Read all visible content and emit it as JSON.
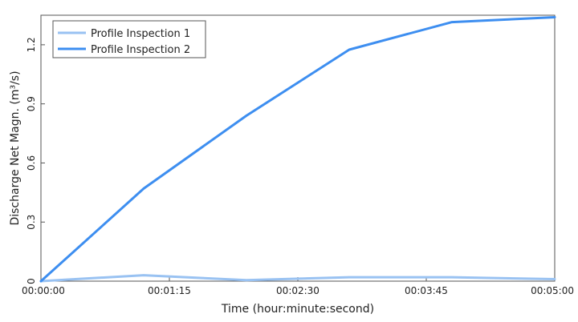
{
  "chart_data": {
    "type": "line",
    "title": "",
    "xlabel": "Time (hour:minute:second)",
    "ylabel": "Discharge Net Magn. (m³/s)",
    "x_ticks": [
      "00:00:00",
      "00:01:15",
      "00:02:30",
      "00:03:45",
      "00:05:00"
    ],
    "x_tick_values": [
      0,
      75,
      150,
      225,
      300
    ],
    "y_ticks": [
      "0",
      "0.3",
      "0.6",
      "0.9",
      "1.2"
    ],
    "y_tick_values": [
      0,
      0.3,
      0.6,
      0.9,
      1.2
    ],
    "xlim": [
      0,
      300
    ],
    "ylim": [
      0,
      1.35
    ],
    "grid": false,
    "legend_position": "top-left",
    "series": [
      {
        "name": "Profile Inspection 1",
        "color": "#99c2f2",
        "x": [
          0,
          60,
          120,
          180,
          240,
          300
        ],
        "y": [
          0.0,
          0.03,
          0.005,
          0.02,
          0.02,
          0.01
        ]
      },
      {
        "name": "Profile Inspection 2",
        "color": "#3d8ef0",
        "x": [
          0,
          60,
          120,
          180,
          240,
          300
        ],
        "y": [
          0.0,
          0.47,
          0.84,
          1.175,
          1.315,
          1.34
        ]
      }
    ]
  }
}
